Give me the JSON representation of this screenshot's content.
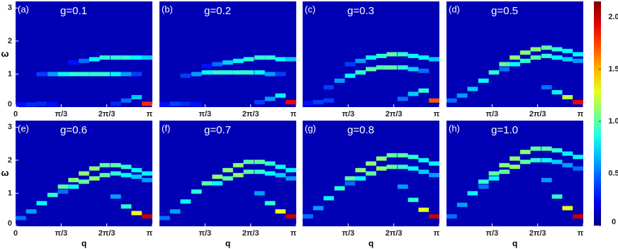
{
  "chart_data": [
    {
      "type": "heatmap",
      "label": "(a)",
      "title": "g=0.1",
      "ylabel": "ω",
      "x": [
        0.12,
        0.36,
        0.6,
        0.85,
        1.09,
        1.33,
        1.57,
        1.81,
        2.05,
        2.3,
        2.54,
        2.78,
        3.02
      ],
      "xlim": [
        0,
        3.1416
      ],
      "ylim": [
        0,
        3.2
      ],
      "xticks": [
        0,
        {
          "value": 1.0472,
          "label": "π/3"
        },
        {
          "value": 2.0944,
          "label": "2π/3"
        },
        {
          "value": 3.1416,
          "label": "π"
        }
      ],
      "yticks": [
        0,
        1,
        2,
        3
      ],
      "background_color": "#0000b4",
      "branches": [
        {
          "values": [
            0.08,
            0.08,
            0.1,
            0.08,
            null,
            null,
            null,
            null,
            null,
            0.1,
            0.2,
            0.3,
            0.1
          ],
          "intensity": [
            0.3,
            0.35,
            0.35,
            0.3,
            null,
            null,
            null,
            null,
            null,
            0.35,
            0.5,
            0.7,
            1.8
          ]
        },
        {
          "values": [
            null,
            null,
            1.0,
            1.0,
            1.0,
            1.0,
            1.0,
            1.0,
            1.0,
            1.0,
            1.0,
            1.0,
            null
          ],
          "intensity": [
            null,
            null,
            0.4,
            0.6,
            0.8,
            0.9,
            0.9,
            0.9,
            0.9,
            0.8,
            0.6,
            0.4,
            null
          ]
        },
        {
          "values": [
            null,
            null,
            null,
            null,
            null,
            1.35,
            1.4,
            1.45,
            1.5,
            1.5,
            1.5,
            1.5,
            1.5
          ],
          "intensity": [
            null,
            null,
            null,
            null,
            null,
            0.3,
            0.5,
            0.8,
            0.9,
            0.9,
            0.9,
            0.8,
            0.7
          ]
        }
      ]
    },
    {
      "type": "heatmap",
      "label": "(b)",
      "title": "g=0.2",
      "x": [
        0.12,
        0.36,
        0.6,
        0.85,
        1.09,
        1.33,
        1.57,
        1.81,
        2.05,
        2.3,
        2.54,
        2.78,
        3.02
      ],
      "xlim": [
        0,
        3.1416
      ],
      "ylim": [
        0,
        3.2
      ],
      "xticks": [
        {
          "value": 1.0472,
          "label": "π/3"
        },
        {
          "value": 2.0944,
          "label": "2π/3"
        },
        {
          "value": 3.1416,
          "label": "π"
        }
      ],
      "background_color": "#0000b4",
      "branches": [
        {
          "values": [
            0.08,
            0.1,
            0.1,
            0.08,
            null,
            null,
            null,
            null,
            null,
            0.15,
            0.25,
            0.35,
            0.15
          ],
          "intensity": [
            0.3,
            0.4,
            0.35,
            0.3,
            null,
            null,
            null,
            null,
            null,
            0.4,
            0.6,
            0.8,
            1.9
          ]
        },
        {
          "values": [
            null,
            null,
            0.95,
            1.0,
            1.05,
            1.05,
            1.05,
            1.05,
            1.05,
            1.05,
            1.0,
            1.0,
            null
          ],
          "intensity": [
            null,
            null,
            0.4,
            0.6,
            0.8,
            0.9,
            0.9,
            0.9,
            0.9,
            0.8,
            0.6,
            0.4,
            null
          ]
        },
        {
          "values": [
            null,
            null,
            null,
            null,
            1.25,
            1.3,
            1.35,
            1.4,
            1.45,
            1.5,
            1.5,
            1.45,
            1.45
          ],
          "intensity": [
            null,
            null,
            null,
            null,
            0.3,
            0.5,
            0.7,
            0.8,
            0.9,
            0.9,
            0.9,
            0.8,
            0.7
          ]
        }
      ]
    },
    {
      "type": "heatmap",
      "label": "(c)",
      "title": "g=0.3",
      "x": [
        0.12,
        0.36,
        0.6,
        0.85,
        1.09,
        1.33,
        1.57,
        1.81,
        2.05,
        2.3,
        2.54,
        2.78,
        3.02
      ],
      "xlim": [
        0,
        3.1416
      ],
      "ylim": [
        0,
        3.2
      ],
      "xticks": [
        {
          "value": 1.0472,
          "label": "π/3"
        },
        {
          "value": 2.0944,
          "label": "2π/3"
        },
        {
          "value": 3.1416,
          "label": "π"
        }
      ],
      "background_color": "#0000b4",
      "branches": [
        {
          "values": [
            0.12,
            0.15,
            0.2,
            null,
            null,
            null,
            null,
            null,
            null,
            0.25,
            0.4,
            0.5,
            0.2
          ],
          "intensity": [
            0.3,
            0.4,
            0.4,
            null,
            null,
            null,
            null,
            null,
            null,
            0.5,
            0.7,
            0.9,
            1.7
          ]
        },
        {
          "values": [
            null,
            null,
            0.6,
            0.8,
            0.95,
            1.05,
            1.15,
            1.2,
            1.2,
            1.2,
            1.15,
            1.1,
            null
          ],
          "intensity": [
            null,
            null,
            0.4,
            0.6,
            0.8,
            0.9,
            1.0,
            1.0,
            1.0,
            0.9,
            0.7,
            0.5,
            null
          ]
        },
        {
          "values": [
            null,
            null,
            null,
            null,
            1.3,
            1.4,
            1.5,
            1.55,
            1.6,
            1.6,
            1.55,
            1.5,
            1.45
          ],
          "intensity": [
            null,
            null,
            null,
            null,
            0.4,
            0.6,
            0.8,
            0.9,
            1.0,
            0.9,
            0.8,
            0.8,
            0.7
          ]
        }
      ]
    },
    {
      "type": "heatmap",
      "label": "(d)",
      "title": "g=0.5",
      "x": [
        0.12,
        0.36,
        0.6,
        0.85,
        1.09,
        1.33,
        1.57,
        1.81,
        2.05,
        2.3,
        2.54,
        2.78,
        3.02
      ],
      "xlim": [
        0,
        3.1416
      ],
      "ylim": [
        0,
        3.2
      ],
      "xticks": [
        {
          "value": 1.0472,
          "label": "π/3"
        },
        {
          "value": 2.0944,
          "label": "2π/3"
        },
        {
          "value": 3.1416,
          "label": "π"
        }
      ],
      "background_color": "#0000b4",
      "branches": [
        {
          "values": [
            null,
            null,
            null,
            null,
            null,
            null,
            null,
            null,
            null,
            0.6,
            0.45,
            0.3,
            0.15
          ],
          "intensity": [
            null,
            null,
            null,
            null,
            null,
            null,
            null,
            null,
            null,
            0.5,
            0.8,
            1.2,
            1.9
          ]
        },
        {
          "values": [
            0.2,
            0.35,
            0.55,
            0.8,
            1.05,
            1.3,
            1.5,
            1.65,
            1.75,
            1.8,
            1.75,
            1.7,
            1.6
          ],
          "intensity": [
            0.5,
            0.6,
            0.7,
            0.8,
            0.9,
            1.0,
            1.1,
            1.1,
            1.1,
            1.0,
            0.9,
            0.8,
            0.8
          ]
        },
        {
          "values": [
            null,
            null,
            null,
            null,
            null,
            1.15,
            1.3,
            1.4,
            1.5,
            1.55,
            1.5,
            1.45,
            1.4
          ],
          "intensity": [
            null,
            null,
            null,
            null,
            null,
            0.5,
            0.8,
            0.9,
            1.0,
            0.9,
            0.8,
            0.7,
            0.6
          ]
        }
      ]
    },
    {
      "type": "heatmap",
      "label": "(e)",
      "title": "g=0.6",
      "ylabel": "ω",
      "xlabel": "q",
      "x": [
        0.12,
        0.36,
        0.6,
        0.85,
        1.09,
        1.33,
        1.57,
        1.81,
        2.05,
        2.3,
        2.54,
        2.78,
        3.02
      ],
      "xlim": [
        0,
        3.1416
      ],
      "ylim": [
        0,
        3.2
      ],
      "xticks": [
        0,
        {
          "value": 1.0472,
          "label": "π/3"
        },
        {
          "value": 2.0944,
          "label": "2π/3"
        },
        {
          "value": 3.1416,
          "label": "π"
        }
      ],
      "yticks": [
        0,
        1,
        2,
        3
      ],
      "background_color": "#0000b4",
      "branches": [
        {
          "values": [
            null,
            null,
            null,
            null,
            null,
            null,
            null,
            null,
            null,
            0.9,
            0.6,
            0.4,
            0.3
          ],
          "intensity": [
            null,
            null,
            null,
            null,
            null,
            null,
            null,
            null,
            null,
            0.6,
            0.9,
            1.3,
            2.0
          ]
        },
        {
          "values": [
            0.25,
            0.45,
            0.7,
            0.95,
            1.2,
            1.4,
            1.6,
            1.75,
            1.85,
            1.85,
            1.8,
            1.7,
            1.6
          ],
          "intensity": [
            0.5,
            0.6,
            0.8,
            0.9,
            1.0,
            1.1,
            1.1,
            1.1,
            1.0,
            1.0,
            0.9,
            0.8,
            0.8
          ]
        },
        {
          "values": [
            null,
            null,
            null,
            null,
            1.05,
            1.2,
            1.35,
            1.45,
            1.55,
            1.6,
            1.55,
            1.5,
            1.4
          ],
          "intensity": [
            null,
            null,
            null,
            null,
            0.5,
            0.8,
            1.0,
            1.1,
            1.0,
            0.9,
            0.8,
            0.7,
            0.6
          ]
        }
      ]
    },
    {
      "type": "heatmap",
      "label": "(f)",
      "title": "g=0.7",
      "xlabel": "q",
      "x": [
        0.12,
        0.36,
        0.6,
        0.85,
        1.09,
        1.33,
        1.57,
        1.81,
        2.05,
        2.3,
        2.54,
        2.78,
        3.02
      ],
      "xlim": [
        0,
        3.1416
      ],
      "ylim": [
        0,
        3.2
      ],
      "xticks": [
        {
          "value": 1.0472,
          "label": "π/3"
        },
        {
          "value": 2.0944,
          "label": "2π/3"
        },
        {
          "value": 3.1416,
          "label": "π"
        }
      ],
      "background_color": "#0000b4",
      "branches": [
        {
          "values": [
            null,
            null,
            null,
            null,
            null,
            null,
            null,
            null,
            null,
            1.0,
            0.7,
            0.45,
            0.3
          ],
          "intensity": [
            null,
            null,
            null,
            null,
            null,
            null,
            null,
            null,
            null,
            0.6,
            0.9,
            1.3,
            2.0
          ]
        },
        {
          "values": [
            0.25,
            0.45,
            0.75,
            1.05,
            1.3,
            1.5,
            1.7,
            1.85,
            1.95,
            1.95,
            1.9,
            1.8,
            1.7
          ],
          "intensity": [
            0.5,
            0.6,
            0.8,
            0.9,
            1.0,
            1.1,
            1.1,
            1.1,
            1.0,
            1.0,
            0.9,
            0.8,
            0.8
          ]
        },
        {
          "values": [
            null,
            null,
            null,
            null,
            null,
            1.3,
            1.45,
            1.55,
            1.65,
            1.65,
            1.6,
            1.55,
            1.45
          ],
          "intensity": [
            null,
            null,
            null,
            null,
            null,
            0.8,
            1.0,
            1.1,
            1.0,
            0.9,
            0.8,
            0.7,
            0.6
          ]
        }
      ]
    },
    {
      "type": "heatmap",
      "label": "(g)",
      "title": "g=0.8",
      "xlabel": "q",
      "x": [
        0.12,
        0.36,
        0.6,
        0.85,
        1.09,
        1.33,
        1.57,
        1.81,
        2.05,
        2.3,
        2.54,
        2.78,
        3.02
      ],
      "xlim": [
        0,
        3.1416
      ],
      "ylim": [
        0,
        3.2
      ],
      "xticks": [
        {
          "value": 1.0472,
          "label": "π/3"
        },
        {
          "value": 2.0944,
          "label": "2π/3"
        },
        {
          "value": 3.1416,
          "label": "π"
        }
      ],
      "background_color": "#0000b4",
      "branches": [
        {
          "values": [
            null,
            null,
            null,
            null,
            null,
            null,
            null,
            null,
            null,
            1.2,
            0.8,
            0.5,
            0.3
          ],
          "intensity": [
            null,
            null,
            null,
            null,
            null,
            null,
            null,
            null,
            null,
            0.6,
            0.9,
            1.3,
            2.0
          ]
        },
        {
          "values": [
            0.3,
            0.55,
            0.85,
            1.15,
            1.45,
            1.7,
            1.9,
            2.05,
            2.15,
            2.15,
            2.1,
            2.0,
            1.9
          ],
          "intensity": [
            0.5,
            0.6,
            0.8,
            0.9,
            1.0,
            1.1,
            1.1,
            1.1,
            1.0,
            1.0,
            0.9,
            0.8,
            0.8
          ]
        },
        {
          "values": [
            null,
            null,
            null,
            null,
            1.3,
            1.45,
            1.6,
            1.75,
            1.8,
            1.8,
            1.75,
            1.65,
            1.55
          ],
          "intensity": [
            null,
            null,
            null,
            null,
            0.5,
            0.8,
            1.0,
            1.1,
            1.0,
            0.9,
            0.8,
            0.7,
            0.6
          ]
        }
      ]
    },
    {
      "type": "heatmap",
      "label": "(h)",
      "title": "g=1.0",
      "xlabel": "q",
      "x": [
        0.12,
        0.36,
        0.6,
        0.85,
        1.09,
        1.33,
        1.57,
        1.81,
        2.05,
        2.3,
        2.54,
        2.78,
        3.02
      ],
      "xlim": [
        0,
        3.1416
      ],
      "ylim": [
        0,
        3.2
      ],
      "xticks": [
        {
          "value": 1.0472,
          "label": "π/3"
        },
        {
          "value": 2.0944,
          "label": "2π/3"
        },
        {
          "value": 3.1416,
          "label": "π"
        }
      ],
      "background_color": "#0000b4",
      "branches": [
        {
          "values": [
            null,
            null,
            null,
            null,
            null,
            null,
            null,
            null,
            null,
            1.4,
            0.9,
            0.55,
            0.3
          ],
          "intensity": [
            null,
            null,
            null,
            null,
            null,
            null,
            null,
            null,
            null,
            0.6,
            0.9,
            1.3,
            2.0
          ]
        },
        {
          "values": [
            0.3,
            0.65,
            1.0,
            1.35,
            1.6,
            1.85,
            2.05,
            2.25,
            2.35,
            2.35,
            2.3,
            2.2,
            2.1
          ],
          "intensity": [
            0.5,
            0.6,
            0.8,
            0.9,
            1.0,
            1.1,
            1.1,
            1.1,
            1.0,
            1.0,
            0.9,
            0.8,
            0.8
          ]
        },
        {
          "values": [
            null,
            null,
            null,
            1.2,
            1.45,
            1.65,
            1.8,
            1.95,
            2.0,
            2.0,
            1.95,
            1.85,
            1.75
          ],
          "intensity": [
            null,
            null,
            null,
            0.5,
            0.8,
            1.0,
            1.1,
            1.0,
            0.9,
            0.8,
            0.7,
            0.6,
            0.5
          ]
        }
      ]
    },
    {
      "type": "colorbar",
      "colormap": "jet",
      "ylim": [
        0,
        2.15
      ],
      "yticks": [
        0,
        0.5,
        {
          "value": 1,
          "label": "1.0"
        },
        1.5,
        {
          "value": 2,
          "label": "2.0"
        }
      ]
    }
  ]
}
